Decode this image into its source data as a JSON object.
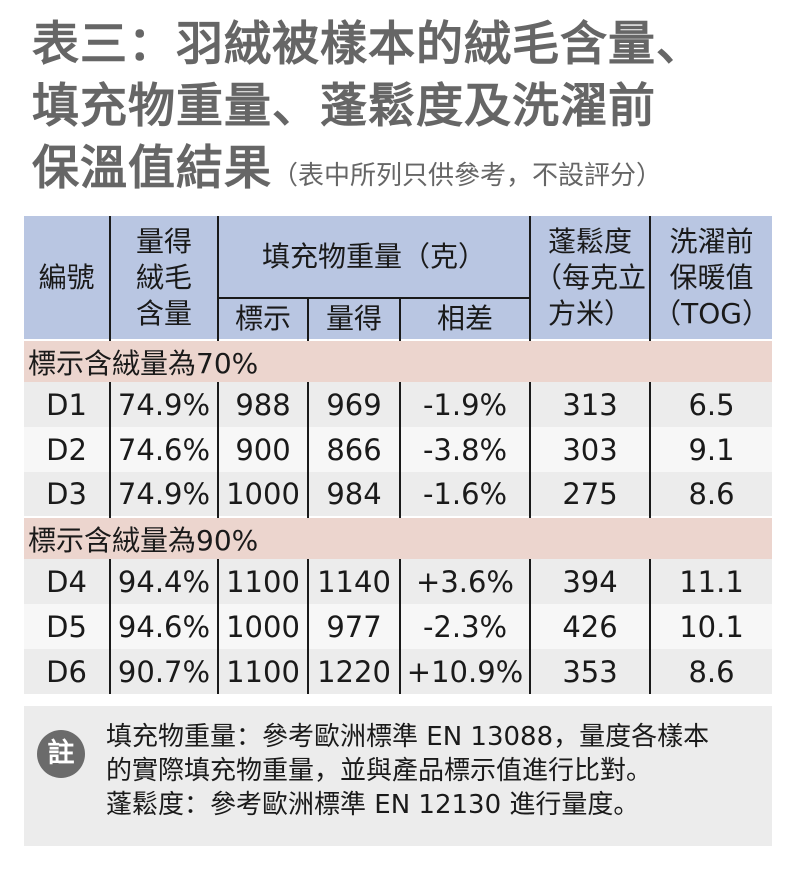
{
  "title": {
    "line1": "表三：羽絨被樣本的絨毛含量、",
    "line2": "填充物重量、蓬鬆度及洗濯前",
    "line3": "保溫值結果",
    "sub": "（表中所列只供參考，不設評分）"
  },
  "table": {
    "headers": {
      "code": "編號",
      "down_content": [
        "量得",
        "絨毛",
        "含量"
      ],
      "fill_weight": "填充物重量（克）",
      "labelled": "標示",
      "measured": "量得",
      "difference": "相差",
      "fill_power": [
        "蓬鬆度",
        "（每克立",
        "方米）"
      ],
      "tog": [
        "洗濯前",
        "保暖值",
        "（TOG）"
      ]
    },
    "groups": [
      {
        "label": "標示含絨量為70%",
        "rows": [
          {
            "code": "D1",
            "down": "74.9%",
            "labelled": "988",
            "measured": "969",
            "diff": "-1.9%",
            "fill_power": "313",
            "tog": "6.5"
          },
          {
            "code": "D2",
            "down": "74.6%",
            "labelled": "900",
            "measured": "866",
            "diff": "-3.8%",
            "fill_power": "303",
            "tog": "9.1"
          },
          {
            "code": "D3",
            "down": "74.9%",
            "labelled": "1000",
            "measured": "984",
            "diff": "-1.6%",
            "fill_power": "275",
            "tog": "8.6"
          }
        ]
      },
      {
        "label": "標示含絨量為90%",
        "rows": [
          {
            "code": "D4",
            "down": "94.4%",
            "labelled": "1100",
            "measured": "1140",
            "diff": "+3.6%",
            "fill_power": "394",
            "tog": "11.1"
          },
          {
            "code": "D5",
            "down": "94.6%",
            "labelled": "1000",
            "measured": "977",
            "diff": "-2.3%",
            "fill_power": "426",
            "tog": "10.1"
          },
          {
            "code": "D6",
            "down": "90.7%",
            "labelled": "1100",
            "measured": "1220",
            "diff": "+10.9%",
            "fill_power": "353",
            "tog": "8.6"
          }
        ]
      }
    ]
  },
  "note": {
    "badge": "註",
    "lines": [
      "填充物重量：參考歐洲標準 EN 13088，量度各樣本",
      "的實際填充物重量，並與產品標示值進行比對。",
      "蓬鬆度：參考歐洲標準 EN 12130 進行量度。"
    ]
  },
  "colors": {
    "header_bg": "#b9c6e2",
    "group_bg": "#ecd5ce",
    "row_odd_bg": "#ececec",
    "row_even_bg": "#f7f7f7",
    "title_color": "#666666",
    "note_bg": "#ececec",
    "badge_bg": "#6b6b6b"
  }
}
